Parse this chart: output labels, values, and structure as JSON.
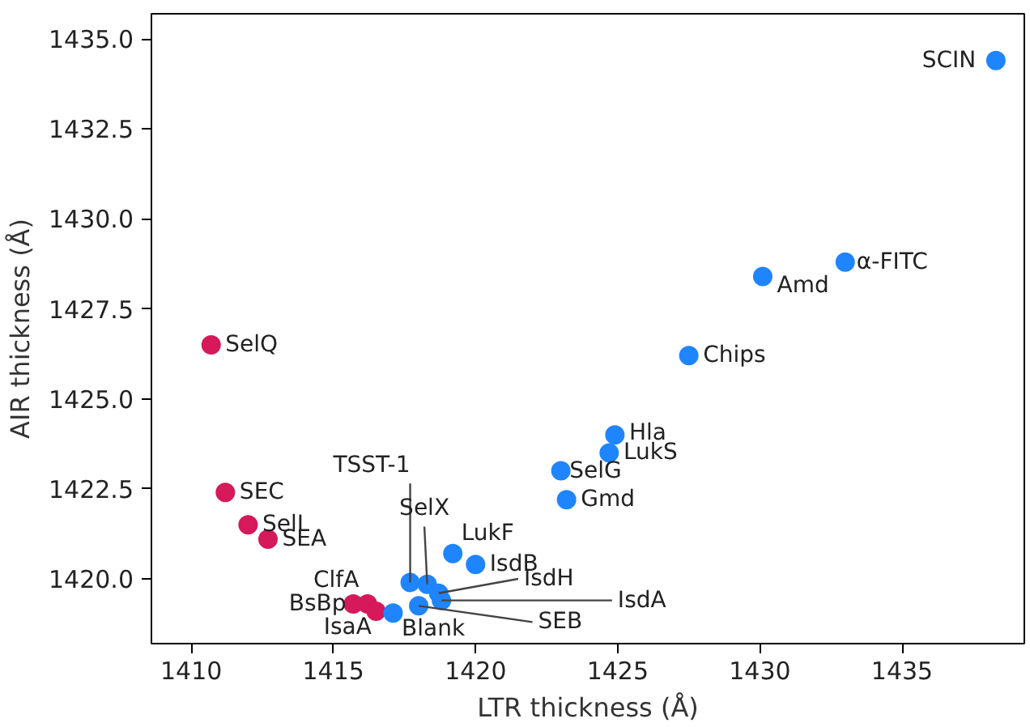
{
  "chart_data": {
    "type": "scatter",
    "xlabel": "LTR thickness (Å)",
    "ylabel": "AIR thickness (Å)",
    "xlim": [
      1408.6,
      1439.3
    ],
    "ylim": [
      1418.2,
      1435.7
    ],
    "xticks": [
      1410,
      1415,
      1420,
      1425,
      1430,
      1435
    ],
    "yticks": [
      {
        "value": 1420,
        "label": "1420.0"
      },
      {
        "value": 1422.5,
        "label": "1422.5"
      },
      {
        "value": 1425,
        "label": "1425.0"
      },
      {
        "value": 1427.5,
        "label": "1427.5"
      },
      {
        "value": 1430,
        "label": "1430.0"
      },
      {
        "value": 1432.5,
        "label": "1432.5"
      },
      {
        "value": 1435,
        "label": "1435.0"
      }
    ],
    "grid": false,
    "marker": "circle",
    "series": [
      {
        "color": "#d6195a",
        "x": [
          1410.7,
          1411.2,
          1412.0,
          1412.7,
          1415.7,
          1416.2,
          1416.5
        ],
        "values": [
          1426.5,
          1422.4,
          1421.5,
          1421.1,
          1419.3,
          1419.3,
          1419.1
        ]
      },
      {
        "color": "#1f85ff",
        "x": [
          1438.3,
          1433.0,
          1430.1,
          1427.5,
          1424.9,
          1424.7,
          1423.0,
          1423.2,
          1419.2,
          1420.0,
          1417.7,
          1418.3,
          1418.7,
          1418.8,
          1418.0,
          1417.1
        ],
        "values": [
          1434.4,
          1428.8,
          1428.4,
          1426.2,
          1424.0,
          1423.5,
          1423.0,
          1422.2,
          1420.7,
          1420.4,
          1419.9,
          1419.85,
          1419.6,
          1419.4,
          1419.25,
          1419.05
        ]
      }
    ],
    "annotations": [
      {
        "text": "SelQ",
        "x": 1410.7,
        "y": 1426.5
      },
      {
        "text": "SEC",
        "x": 1411.2,
        "y": 1422.4
      },
      {
        "text": "SelI",
        "x": 1412.0,
        "y": 1421.5
      },
      {
        "text": "SEA",
        "x": 1412.7,
        "y": 1421.1
      },
      {
        "text": "ClfA",
        "x": 1415.7,
        "y": 1419.3
      },
      {
        "text": "BsBp",
        "x": 1416.2,
        "y": 1419.3
      },
      {
        "text": "IsaA",
        "x": 1416.5,
        "y": 1419.1
      },
      {
        "text": "SCIN",
        "x": 1438.3,
        "y": 1434.4
      },
      {
        "text": "α-FITC",
        "x": 1433.0,
        "y": 1428.8
      },
      {
        "text": "Amd",
        "x": 1430.1,
        "y": 1428.4
      },
      {
        "text": "Chips",
        "x": 1427.5,
        "y": 1426.2
      },
      {
        "text": "Hla",
        "x": 1424.9,
        "y": 1424.0
      },
      {
        "text": "LukS",
        "x": 1424.7,
        "y": 1423.5
      },
      {
        "text": "SelG",
        "x": 1423.0,
        "y": 1423.0
      },
      {
        "text": "Gmd",
        "x": 1423.2,
        "y": 1422.2
      },
      {
        "text": "LukF",
        "x": 1419.2,
        "y": 1420.7
      },
      {
        "text": "IsdB",
        "x": 1420.0,
        "y": 1420.4
      },
      {
        "text": "TSST-1",
        "x": 1417.7,
        "y": 1419.9
      },
      {
        "text": "SelX",
        "x": 1418.3,
        "y": 1419.85
      },
      {
        "text": "IsdH",
        "x": 1418.7,
        "y": 1419.6
      },
      {
        "text": "IsdA",
        "x": 1418.8,
        "y": 1419.4
      },
      {
        "text": "SEB",
        "x": 1418.0,
        "y": 1419.25
      },
      {
        "text": "Blank",
        "x": 1417.1,
        "y": 1419.05
      }
    ]
  }
}
